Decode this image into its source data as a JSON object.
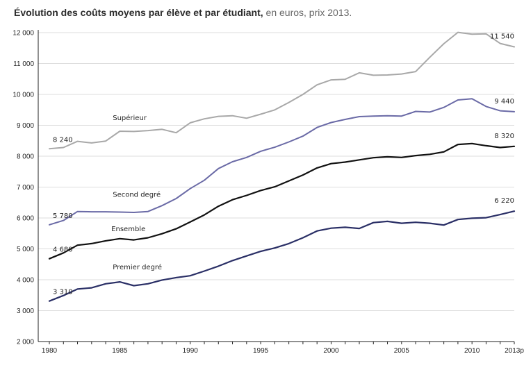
{
  "title": {
    "main": "Évolution des coûts moyens par élève et par étudiant,",
    "sub": " en euros, prix 2013."
  },
  "colors": {
    "superieur": "#a8a8a8",
    "second_degre": "#6a6aa6",
    "ensemble": "#111111",
    "premier_degre": "#2a2f66",
    "grid": "#dddddd",
    "axis": "#222222"
  },
  "chart_data": {
    "type": "line",
    "title": "Évolution des coûts moyens par élève et par étudiant, en euros, prix 2013.",
    "xlabel": "",
    "ylabel": "",
    "ylim": [
      2000,
      12000
    ],
    "xlim": [
      1980,
      2013
    ],
    "grid": true,
    "x_tick_labels": [
      "1980",
      "1985",
      "1990",
      "1995",
      "2000",
      "2005",
      "2010",
      "2013p"
    ],
    "x_tick_values": [
      1980,
      1985,
      1990,
      1995,
      2000,
      2005,
      2010,
      2013
    ],
    "y_tick_labels": [
      "2 000",
      "3 000",
      "4 000",
      "5 000",
      "6 000",
      "7 000",
      "8 000",
      "9 000",
      "10 000",
      "11 000",
      "12 000"
    ],
    "y_tick_values": [
      2000,
      3000,
      4000,
      5000,
      6000,
      7000,
      8000,
      9000,
      10000,
      11000,
      12000
    ],
    "x": [
      1980,
      1981,
      1982,
      1983,
      1984,
      1985,
      1986,
      1987,
      1988,
      1989,
      1990,
      1991,
      1992,
      1993,
      1994,
      1995,
      1996,
      1997,
      1998,
      1999,
      2000,
      2001,
      2002,
      2003,
      2004,
      2005,
      2006,
      2007,
      2008,
      2009,
      2010,
      2011,
      2012,
      2013
    ],
    "series": [
      {
        "name": "Supérieur",
        "key": "superieur",
        "values": [
          8240,
          8280,
          8480,
          8430,
          8490,
          8810,
          8800,
          8830,
          8870,
          8760,
          9080,
          9210,
          9290,
          9310,
          9230,
          9360,
          9500,
          9740,
          10000,
          10310,
          10470,
          10490,
          10700,
          10620,
          10630,
          10660,
          10740,
          11200,
          11640,
          12010,
          11950,
          11960,
          11650,
          11540
        ],
        "start_label": "8 240",
        "end_label": "11 540"
      },
      {
        "name": "Second degré",
        "key": "second_degre",
        "values": [
          5780,
          5920,
          6210,
          6200,
          6200,
          6190,
          6180,
          6210,
          6400,
          6630,
          6950,
          7220,
          7600,
          7820,
          7960,
          8160,
          8290,
          8460,
          8650,
          8930,
          9090,
          9190,
          9280,
          9300,
          9310,
          9300,
          9450,
          9430,
          9580,
          9820,
          9860,
          9610,
          9470,
          9440
        ],
        "start_label": "5 780",
        "end_label": "9 440"
      },
      {
        "name": "Ensemble",
        "key": "ensemble",
        "values": [
          4680,
          4870,
          5120,
          5170,
          5260,
          5330,
          5290,
          5360,
          5490,
          5650,
          5870,
          6100,
          6380,
          6590,
          6730,
          6890,
          7010,
          7200,
          7390,
          7620,
          7760,
          7810,
          7880,
          7950,
          7980,
          7960,
          8020,
          8060,
          8140,
          8380,
          8410,
          8340,
          8280,
          8320
        ],
        "start_label": "4 680",
        "end_label": "8 320"
      },
      {
        "name": "Premier degré",
        "key": "premier_degre",
        "values": [
          3310,
          3490,
          3700,
          3740,
          3870,
          3930,
          3810,
          3870,
          3990,
          4070,
          4130,
          4280,
          4440,
          4620,
          4770,
          4920,
          5030,
          5170,
          5360,
          5580,
          5670,
          5700,
          5660,
          5850,
          5890,
          5830,
          5860,
          5830,
          5770,
          5950,
          5990,
          6010,
          6110,
          6220
        ],
        "start_label": "3 310",
        "end_label": "6 220"
      }
    ]
  }
}
